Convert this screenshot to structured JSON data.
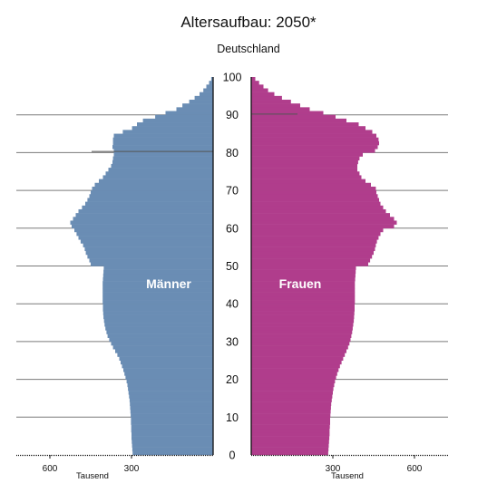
{
  "chart_data": {
    "type": "bar",
    "orientation": "horizontal-population-pyramid",
    "title": "Altersaufbau: 2050*",
    "subtitle": "Deutschland",
    "unit": "Tausend",
    "age_ticks": [
      0,
      10,
      20,
      30,
      40,
      50,
      60,
      70,
      80,
      90,
      100
    ],
    "value_ticks_left": [
      600,
      300
    ],
    "value_ticks_right": [
      300,
      600
    ],
    "xlim": [
      0,
      720
    ],
    "ylim": [
      0,
      100
    ],
    "grid": "horizontal every 10 years",
    "series": [
      {
        "name": "Männer",
        "color": "#6a8db4",
        "age_start": 0,
        "values": [
          296,
          297,
          298,
          299,
          300,
          300,
          301,
          301,
          302,
          302,
          303,
          304,
          305,
          306,
          307,
          309,
          311,
          313,
          315,
          318,
          322,
          326,
          330,
          335,
          340,
          345,
          352,
          360,
          368,
          375,
          382,
          388,
          392,
          396,
          399,
          401,
          403,
          404,
          405,
          405,
          406,
          406,
          406,
          406,
          406,
          406,
          405,
          404,
          403,
          402,
          450,
          455,
          462,
          468,
          472,
          478,
          487,
          495,
          502,
          510,
          520,
          525,
          515,
          505,
          495,
          482,
          470,
          462,
          455,
          450,
          445,
          435,
          420,
          405,
          395,
          385,
          375,
          370,
          368,
          365,
          365,
          370,
          368,
          368,
          365,
          332,
          298,
          280,
          258,
          213,
          175,
          135,
          113,
          88,
          68,
          50,
          36,
          25,
          15,
          7
        ]
      },
      {
        "name": "Frauen",
        "color": "#b03d8c",
        "age_start": 0,
        "values": [
          283,
          284,
          285,
          286,
          287,
          288,
          288,
          289,
          290,
          290,
          291,
          292,
          293,
          294,
          296,
          298,
          300,
          302,
          305,
          308,
          312,
          316,
          321,
          326,
          332,
          338,
          344,
          350,
          356,
          361,
          365,
          368,
          371,
          373,
          375,
          377,
          378,
          379,
          380,
          380,
          381,
          381,
          381,
          381,
          381,
          381,
          382,
          383,
          384,
          385,
          430,
          437,
          444,
          450,
          455,
          458,
          462,
          468,
          475,
          485,
          525,
          535,
          525,
          510,
          495,
          485,
          475,
          470,
          465,
          460,
          458,
          440,
          420,
          405,
          398,
          390,
          390,
          393,
          398,
          410,
          455,
          465,
          470,
          468,
          460,
          445,
          420,
          395,
          350,
          310,
          265,
          215,
          180,
          146,
          113,
          85,
          62,
          45,
          29,
          15
        ]
      }
    ],
    "labels": {
      "left": "Männer",
      "right": "Frauen"
    }
  }
}
